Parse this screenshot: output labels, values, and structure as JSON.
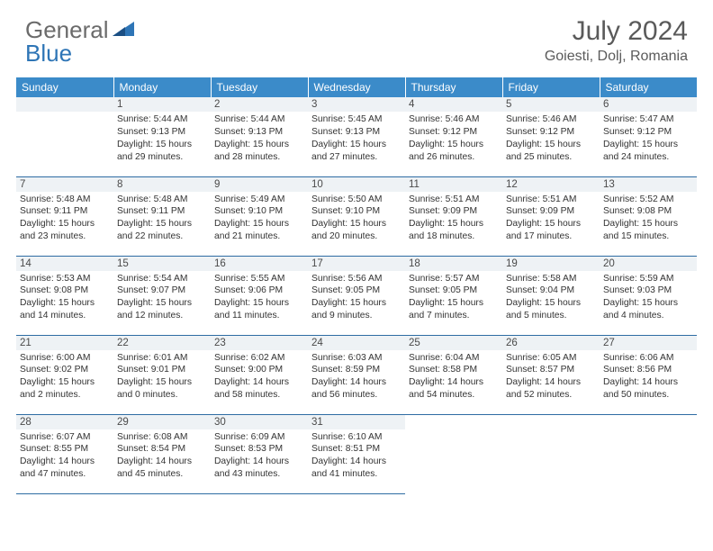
{
  "logo": {
    "text1": "General",
    "text2": "Blue"
  },
  "title": "July 2024",
  "location": "Goiesti, Dolj, Romania",
  "colors": {
    "header_bg": "#3b8bc9",
    "header_text": "#ffffff",
    "daynum_bg": "#eef2f5",
    "border": "#2e6ca3",
    "logo_gray": "#6b6b6b",
    "logo_blue": "#2e75b6"
  },
  "day_headers": [
    "Sunday",
    "Monday",
    "Tuesday",
    "Wednesday",
    "Thursday",
    "Friday",
    "Saturday"
  ],
  "weeks": [
    [
      {
        "n": "",
        "lines": []
      },
      {
        "n": "1",
        "lines": [
          "Sunrise: 5:44 AM",
          "Sunset: 9:13 PM",
          "Daylight: 15 hours",
          "and 29 minutes."
        ]
      },
      {
        "n": "2",
        "lines": [
          "Sunrise: 5:44 AM",
          "Sunset: 9:13 PM",
          "Daylight: 15 hours",
          "and 28 minutes."
        ]
      },
      {
        "n": "3",
        "lines": [
          "Sunrise: 5:45 AM",
          "Sunset: 9:13 PM",
          "Daylight: 15 hours",
          "and 27 minutes."
        ]
      },
      {
        "n": "4",
        "lines": [
          "Sunrise: 5:46 AM",
          "Sunset: 9:12 PM",
          "Daylight: 15 hours",
          "and 26 minutes."
        ]
      },
      {
        "n": "5",
        "lines": [
          "Sunrise: 5:46 AM",
          "Sunset: 9:12 PM",
          "Daylight: 15 hours",
          "and 25 minutes."
        ]
      },
      {
        "n": "6",
        "lines": [
          "Sunrise: 5:47 AM",
          "Sunset: 9:12 PM",
          "Daylight: 15 hours",
          "and 24 minutes."
        ]
      }
    ],
    [
      {
        "n": "7",
        "lines": [
          "Sunrise: 5:48 AM",
          "Sunset: 9:11 PM",
          "Daylight: 15 hours",
          "and 23 minutes."
        ]
      },
      {
        "n": "8",
        "lines": [
          "Sunrise: 5:48 AM",
          "Sunset: 9:11 PM",
          "Daylight: 15 hours",
          "and 22 minutes."
        ]
      },
      {
        "n": "9",
        "lines": [
          "Sunrise: 5:49 AM",
          "Sunset: 9:10 PM",
          "Daylight: 15 hours",
          "and 21 minutes."
        ]
      },
      {
        "n": "10",
        "lines": [
          "Sunrise: 5:50 AM",
          "Sunset: 9:10 PM",
          "Daylight: 15 hours",
          "and 20 minutes."
        ]
      },
      {
        "n": "11",
        "lines": [
          "Sunrise: 5:51 AM",
          "Sunset: 9:09 PM",
          "Daylight: 15 hours",
          "and 18 minutes."
        ]
      },
      {
        "n": "12",
        "lines": [
          "Sunrise: 5:51 AM",
          "Sunset: 9:09 PM",
          "Daylight: 15 hours",
          "and 17 minutes."
        ]
      },
      {
        "n": "13",
        "lines": [
          "Sunrise: 5:52 AM",
          "Sunset: 9:08 PM",
          "Daylight: 15 hours",
          "and 15 minutes."
        ]
      }
    ],
    [
      {
        "n": "14",
        "lines": [
          "Sunrise: 5:53 AM",
          "Sunset: 9:08 PM",
          "Daylight: 15 hours",
          "and 14 minutes."
        ]
      },
      {
        "n": "15",
        "lines": [
          "Sunrise: 5:54 AM",
          "Sunset: 9:07 PM",
          "Daylight: 15 hours",
          "and 12 minutes."
        ]
      },
      {
        "n": "16",
        "lines": [
          "Sunrise: 5:55 AM",
          "Sunset: 9:06 PM",
          "Daylight: 15 hours",
          "and 11 minutes."
        ]
      },
      {
        "n": "17",
        "lines": [
          "Sunrise: 5:56 AM",
          "Sunset: 9:05 PM",
          "Daylight: 15 hours",
          "and 9 minutes."
        ]
      },
      {
        "n": "18",
        "lines": [
          "Sunrise: 5:57 AM",
          "Sunset: 9:05 PM",
          "Daylight: 15 hours",
          "and 7 minutes."
        ]
      },
      {
        "n": "19",
        "lines": [
          "Sunrise: 5:58 AM",
          "Sunset: 9:04 PM",
          "Daylight: 15 hours",
          "and 5 minutes."
        ]
      },
      {
        "n": "20",
        "lines": [
          "Sunrise: 5:59 AM",
          "Sunset: 9:03 PM",
          "Daylight: 15 hours",
          "and 4 minutes."
        ]
      }
    ],
    [
      {
        "n": "21",
        "lines": [
          "Sunrise: 6:00 AM",
          "Sunset: 9:02 PM",
          "Daylight: 15 hours",
          "and 2 minutes."
        ]
      },
      {
        "n": "22",
        "lines": [
          "Sunrise: 6:01 AM",
          "Sunset: 9:01 PM",
          "Daylight: 15 hours",
          "and 0 minutes."
        ]
      },
      {
        "n": "23",
        "lines": [
          "Sunrise: 6:02 AM",
          "Sunset: 9:00 PM",
          "Daylight: 14 hours",
          "and 58 minutes."
        ]
      },
      {
        "n": "24",
        "lines": [
          "Sunrise: 6:03 AM",
          "Sunset: 8:59 PM",
          "Daylight: 14 hours",
          "and 56 minutes."
        ]
      },
      {
        "n": "25",
        "lines": [
          "Sunrise: 6:04 AM",
          "Sunset: 8:58 PM",
          "Daylight: 14 hours",
          "and 54 minutes."
        ]
      },
      {
        "n": "26",
        "lines": [
          "Sunrise: 6:05 AM",
          "Sunset: 8:57 PM",
          "Daylight: 14 hours",
          "and 52 minutes."
        ]
      },
      {
        "n": "27",
        "lines": [
          "Sunrise: 6:06 AM",
          "Sunset: 8:56 PM",
          "Daylight: 14 hours",
          "and 50 minutes."
        ]
      }
    ],
    [
      {
        "n": "28",
        "lines": [
          "Sunrise: 6:07 AM",
          "Sunset: 8:55 PM",
          "Daylight: 14 hours",
          "and 47 minutes."
        ]
      },
      {
        "n": "29",
        "lines": [
          "Sunrise: 6:08 AM",
          "Sunset: 8:54 PM",
          "Daylight: 14 hours",
          "and 45 minutes."
        ]
      },
      {
        "n": "30",
        "lines": [
          "Sunrise: 6:09 AM",
          "Sunset: 8:53 PM",
          "Daylight: 14 hours",
          "and 43 minutes."
        ]
      },
      {
        "n": "31",
        "lines": [
          "Sunrise: 6:10 AM",
          "Sunset: 8:51 PM",
          "Daylight: 14 hours",
          "and 41 minutes."
        ]
      },
      {
        "n": "",
        "lines": []
      },
      {
        "n": "",
        "lines": []
      },
      {
        "n": "",
        "lines": []
      }
    ]
  ]
}
